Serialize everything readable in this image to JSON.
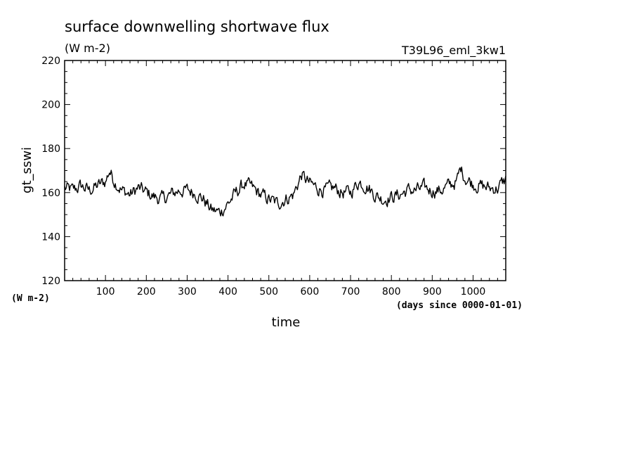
{
  "chart_data": {
    "type": "line",
    "title": "surface downwelling shortwave flux",
    "units": "(W m-2)",
    "experiment": "T39L96_eml_3kw1",
    "ylabel": "gt_sswi",
    "yunits": "(W m-2)",
    "xlabel": "time",
    "xunits": "(days since 0000-01-01)",
    "xlim": [
      0,
      1080
    ],
    "ylim": [
      120,
      220
    ],
    "xticks": [
      100,
      200,
      300,
      400,
      500,
      600,
      700,
      800,
      900,
      1000
    ],
    "yticks": [
      120,
      140,
      160,
      180,
      200,
      220
    ],
    "grid": false,
    "series": [
      {
        "color": "#000000",
        "x": [
          0,
          20,
          40,
          60,
          80,
          100,
          110,
          120,
          140,
          160,
          180,
          200,
          220,
          240,
          260,
          280,
          300,
          320,
          340,
          360,
          380,
          400,
          420,
          440,
          460,
          480,
          500,
          520,
          540,
          560,
          580,
          600,
          620,
          640,
          660,
          680,
          700,
          720,
          740,
          760,
          780,
          800,
          820,
          840,
          860,
          880,
          900,
          920,
          940,
          960,
          970,
          980,
          1000,
          1020,
          1040,
          1060,
          1080
        ],
        "y": [
          162,
          161,
          163,
          161,
          163,
          165,
          170,
          166,
          161,
          159,
          162,
          160,
          158,
          157,
          159,
          161,
          161,
          160,
          157,
          152,
          151,
          155,
          160,
          164,
          162,
          159,
          157,
          155,
          157,
          159,
          168,
          164,
          162,
          161,
          162,
          160,
          160,
          165,
          163,
          159,
          157,
          158,
          159,
          161,
          161,
          162,
          161,
          161,
          163,
          165,
          171,
          167,
          164,
          163,
          162,
          162,
          166
        ]
      }
    ]
  }
}
